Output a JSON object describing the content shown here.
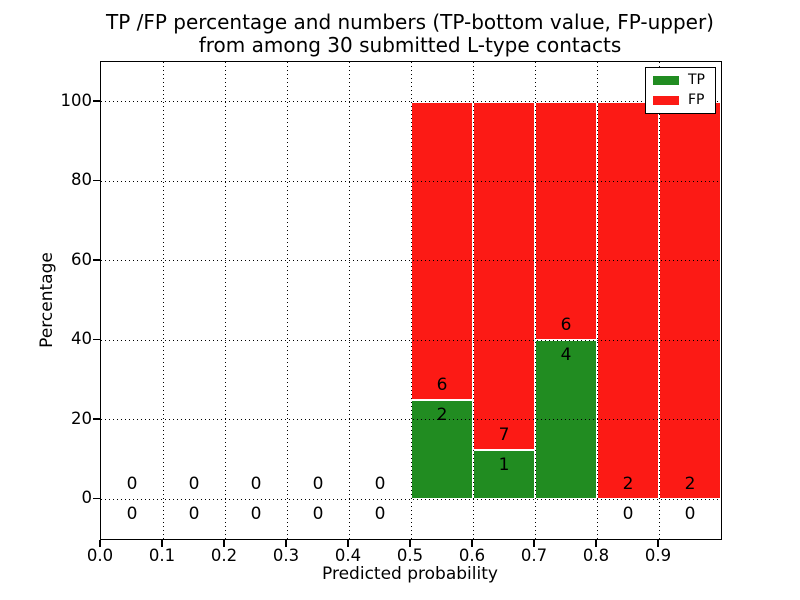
{
  "chart_data": {
    "type": "bar",
    "stacked": true,
    "title": "TP /FP percentage and numbers (TP-bottom value, FP-upper)",
    "subtitle": "from among 30 submitted L-type contacts",
    "xlabel": "Predicted probability",
    "ylabel": "Percentage",
    "xlim": [
      0.0,
      1.0
    ],
    "ylim": [
      -10,
      110
    ],
    "grid": true,
    "legend_position": "upper right",
    "x_ticks": [
      {
        "value": 0.0,
        "label": "0.0"
      },
      {
        "value": 0.1,
        "label": "0.1"
      },
      {
        "value": 0.2,
        "label": "0.2"
      },
      {
        "value": 0.3,
        "label": "0.3"
      },
      {
        "value": 0.4,
        "label": "0.4"
      },
      {
        "value": 0.5,
        "label": "0.5"
      },
      {
        "value": 0.6,
        "label": "0.6"
      },
      {
        "value": 0.7,
        "label": "0.7"
      },
      {
        "value": 0.8,
        "label": "0.8"
      },
      {
        "value": 0.9,
        "label": "0.9"
      }
    ],
    "y_ticks": [
      {
        "value": 0,
        "label": "0"
      },
      {
        "value": 20,
        "label": "20"
      },
      {
        "value": 40,
        "label": "40"
      },
      {
        "value": 60,
        "label": "60"
      },
      {
        "value": 80,
        "label": "80"
      },
      {
        "value": 100,
        "label": "100"
      }
    ],
    "colors": {
      "tp": "#218c21",
      "fp": "#fc1a15",
      "grid": "#000000",
      "bar_edge": "#ffffff"
    },
    "legend": [
      {
        "label": "TP",
        "color_key": "tp"
      },
      {
        "label": "FP",
        "color_key": "fp"
      }
    ],
    "bins": [
      {
        "x_start": 0.0,
        "x_end": 0.1,
        "tp_count": 0,
        "fp_count": 0,
        "tp_pct": 0,
        "fp_pct": 0,
        "has_bar": false
      },
      {
        "x_start": 0.1,
        "x_end": 0.2,
        "tp_count": 0,
        "fp_count": 0,
        "tp_pct": 0,
        "fp_pct": 0,
        "has_bar": false
      },
      {
        "x_start": 0.2,
        "x_end": 0.3,
        "tp_count": 0,
        "fp_count": 0,
        "tp_pct": 0,
        "fp_pct": 0,
        "has_bar": false
      },
      {
        "x_start": 0.3,
        "x_end": 0.4,
        "tp_count": 0,
        "fp_count": 0,
        "tp_pct": 0,
        "fp_pct": 0,
        "has_bar": false
      },
      {
        "x_start": 0.4,
        "x_end": 0.5,
        "tp_count": 0,
        "fp_count": 0,
        "tp_pct": 0,
        "fp_pct": 0,
        "has_bar": false
      },
      {
        "x_start": 0.5,
        "x_end": 0.6,
        "tp_count": 2,
        "fp_count": 6,
        "tp_pct": 25,
        "fp_pct": 75,
        "has_bar": true
      },
      {
        "x_start": 0.6,
        "x_end": 0.7,
        "tp_count": 1,
        "fp_count": 7,
        "tp_pct": 12.5,
        "fp_pct": 87.5,
        "has_bar": true
      },
      {
        "x_start": 0.7,
        "x_end": 0.8,
        "tp_count": 4,
        "fp_count": 6,
        "tp_pct": 40,
        "fp_pct": 60,
        "has_bar": true
      },
      {
        "x_start": 0.8,
        "x_end": 0.9,
        "tp_count": 0,
        "fp_count": 2,
        "tp_pct": 0,
        "fp_pct": 100,
        "has_bar": true
      },
      {
        "x_start": 0.9,
        "x_end": 1.0,
        "tp_count": 0,
        "fp_count": 2,
        "tp_pct": 0,
        "fp_pct": 100,
        "has_bar": true
      }
    ]
  }
}
